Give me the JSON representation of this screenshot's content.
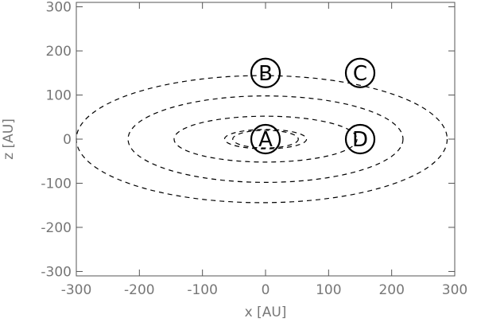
{
  "chart_data": {
    "type": "diagram",
    "xlabel": "x  [AU]",
    "ylabel": "z  [AU]",
    "xlim": [
      -300,
      300
    ],
    "ylim": [
      -310,
      310
    ],
    "xticks": [
      -300,
      -200,
      -100,
      0,
      100,
      200,
      300
    ],
    "yticks": [
      -300,
      -200,
      -100,
      0,
      100,
      200,
      300
    ],
    "orbits": [
      {
        "cx": 0,
        "cz": 0,
        "rx": 52,
        "rz": 20
      },
      {
        "cx": 0,
        "cz": 0,
        "rx": 65,
        "rz": 22
      },
      {
        "cx": 0,
        "cz": 0,
        "rx": 145,
        "rz": 52
      },
      {
        "cx": 0,
        "cz": 0,
        "rx": 218,
        "rz": 98
      },
      {
        "cx": -6,
        "cz": 0,
        "rx": 294,
        "rz": 144
      }
    ],
    "markers": [
      {
        "label": "A",
        "x": 0,
        "z": 0
      },
      {
        "label": "B",
        "x": 0,
        "z": 150
      },
      {
        "label": "C",
        "x": 150,
        "z": 150
      },
      {
        "label": "D",
        "x": 150,
        "z": 0
      }
    ]
  }
}
